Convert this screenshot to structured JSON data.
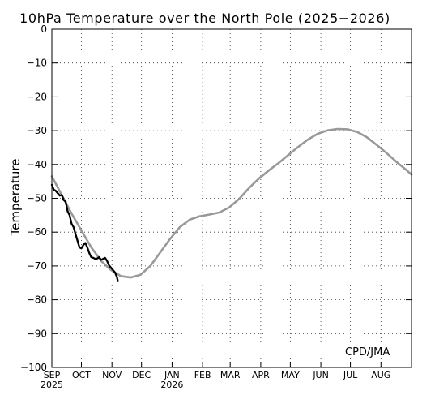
{
  "chart_data": {
    "type": "line",
    "title": "10hPa Temperature over the North Pole (2025−2026)",
    "ylabel": "Temperature",
    "xlabel": "",
    "credit": "CPD/JMA",
    "ylim": [
      -100,
      0
    ],
    "yticks": [
      0,
      -10,
      -20,
      -30,
      -40,
      -50,
      -60,
      -70,
      -80,
      -90,
      -100
    ],
    "ytick_labels": [
      "0",
      "−10",
      "−20",
      "−30",
      "−40",
      "−50",
      "−60",
      "−70",
      "−80",
      "−90",
      "−100"
    ],
    "x_unit": "day-of-season (0 = 1 Sep 2025)",
    "xlim": [
      0,
      365
    ],
    "xticks": [
      {
        "day": 0,
        "label": "SEP",
        "sub": "2025"
      },
      {
        "day": 30,
        "label": "OCT",
        "sub": ""
      },
      {
        "day": 61,
        "label": "NOV",
        "sub": ""
      },
      {
        "day": 91,
        "label": "DEC",
        "sub": ""
      },
      {
        "day": 122,
        "label": "JAN",
        "sub": "2026"
      },
      {
        "day": 153,
        "label": "FEB",
        "sub": ""
      },
      {
        "day": 181,
        "label": "MAR",
        "sub": ""
      },
      {
        "day": 212,
        "label": "APR",
        "sub": ""
      },
      {
        "day": 242,
        "label": "MAY",
        "sub": ""
      },
      {
        "day": 273,
        "label": "JUN",
        "sub": ""
      },
      {
        "day": 303,
        "label": "JUL",
        "sub": ""
      },
      {
        "day": 334,
        "label": "AUG",
        "sub": ""
      }
    ],
    "grid": true,
    "series": [
      {
        "name": "",
        "color": "#999999",
        "x": [
          0,
          10,
          20,
          30,
          40,
          50,
          60,
          70,
          80,
          90,
          100,
          110,
          120,
          130,
          140,
          150,
          160,
          170,
          180,
          190,
          200,
          210,
          220,
          230,
          240,
          250,
          260,
          270,
          280,
          290,
          300,
          310,
          320,
          330,
          340,
          350,
          360,
          365
        ],
        "y": [
          -43.5,
          -49,
          -54.5,
          -59.5,
          -64.5,
          -68.5,
          -71.2,
          -73,
          -73.4,
          -72.6,
          -70,
          -66,
          -62,
          -58.5,
          -56.3,
          -55.3,
          -54.8,
          -54.2,
          -52.7,
          -50.2,
          -47,
          -44.2,
          -41.8,
          -39.6,
          -37.2,
          -34.8,
          -32.6,
          -30.9,
          -29.9,
          -29.5,
          -29.6,
          -30.4,
          -32,
          -34.3,
          -36.7,
          -39.3,
          -41.7,
          -43
        ]
      },
      {
        "name": "",
        "color": "#000000",
        "x": [
          0,
          2,
          4,
          6,
          8,
          10,
          12,
          14,
          16,
          18,
          20,
          22,
          24,
          26,
          28,
          30,
          32,
          34,
          36,
          38,
          40,
          42,
          44,
          46,
          48,
          50,
          52,
          54,
          56,
          58,
          60,
          62,
          64,
          66,
          67
        ],
        "y": [
          -46,
          -47.5,
          -47.8,
          -48.5,
          -49.2,
          -49,
          -50.5,
          -51,
          -53.8,
          -55,
          -57.5,
          -58.5,
          -60.5,
          -62.5,
          -64.5,
          -64.8,
          -63.8,
          -63.2,
          -64.5,
          -66.2,
          -67.4,
          -67.6,
          -67.9,
          -67.8,
          -67.4,
          -68.2,
          -67.9,
          -67.6,
          -68.5,
          -69.8,
          -70.5,
          -71.2,
          -71.9,
          -73.2,
          -74.5
        ]
      }
    ]
  }
}
